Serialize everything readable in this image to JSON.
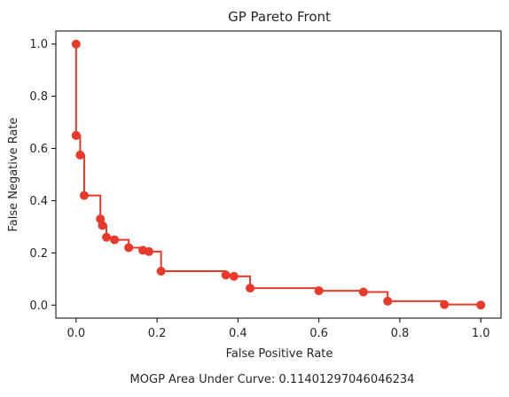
{
  "chart_data": {
    "type": "line",
    "title": "GP Pareto Front",
    "xlabel": "False Positive Rate",
    "ylabel": "False Negative Rate",
    "xlim": [
      -0.05,
      1.05
    ],
    "ylim": [
      -0.05,
      1.05
    ],
    "xticks": [
      0.0,
      0.2,
      0.4,
      0.6,
      0.8,
      1.0
    ],
    "yticks": [
      0.0,
      0.2,
      0.4,
      0.6,
      0.8,
      1.0
    ],
    "xtick_labels": [
      "0.0",
      "0.2",
      "0.4",
      "0.6",
      "0.8",
      "1.0"
    ],
    "ytick_labels": [
      "0.0",
      "0.2",
      "0.4",
      "0.6",
      "0.8",
      "1.0"
    ],
    "grid": false,
    "legend": "none",
    "step_style": "post",
    "color": "#e8392b",
    "points": [
      {
        "x": 0.0,
        "y": 1.0
      },
      {
        "x": 0.0,
        "y": 0.65
      },
      {
        "x": 0.01,
        "y": 0.575
      },
      {
        "x": 0.02,
        "y": 0.42
      },
      {
        "x": 0.06,
        "y": 0.33
      },
      {
        "x": 0.065,
        "y": 0.305
      },
      {
        "x": 0.075,
        "y": 0.26
      },
      {
        "x": 0.095,
        "y": 0.25
      },
      {
        "x": 0.13,
        "y": 0.22
      },
      {
        "x": 0.165,
        "y": 0.21
      },
      {
        "x": 0.18,
        "y": 0.205
      },
      {
        "x": 0.21,
        "y": 0.13
      },
      {
        "x": 0.37,
        "y": 0.115
      },
      {
        "x": 0.39,
        "y": 0.11
      },
      {
        "x": 0.43,
        "y": 0.065
      },
      {
        "x": 0.6,
        "y": 0.055
      },
      {
        "x": 0.71,
        "y": 0.05
      },
      {
        "x": 0.77,
        "y": 0.015
      },
      {
        "x": 0.91,
        "y": 0.002
      },
      {
        "x": 1.0,
        "y": 0.0
      }
    ]
  },
  "footer": {
    "text": "MOGP Area Under Curve: 0.11401297046046234"
  }
}
